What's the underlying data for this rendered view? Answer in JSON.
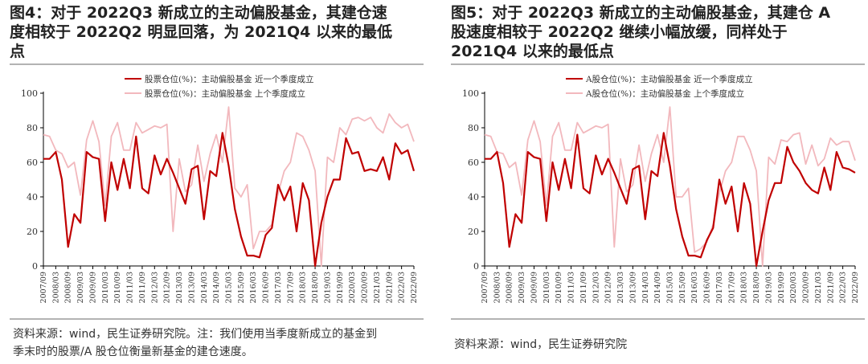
{
  "colors": {
    "recent": "#c00000",
    "prior": "#f2b8bd",
    "axis": "#000000"
  },
  "chart_data": [
    {
      "type": "line",
      "title": "图4：对于 2022Q3 新成立的主动偏股基金，其建仓速\n度相较于 2022Q2 明显回落，为 2021Q4 以来的最低\n点",
      "source": "资料来源：wind，民生证券研究院。注：我们使用当季度新成立的基金到\n季末时的股票/A 股仓位衡量新基金的建仓速度。",
      "xlabel": "",
      "ylabel": "",
      "ylim": [
        0,
        100
      ],
      "yticks": [
        0,
        20,
        40,
        60,
        80,
        100
      ],
      "legend_position": "top",
      "categories": [
        "2007/09",
        "2007/12",
        "2008/03",
        "2008/06",
        "2008/09",
        "2008/12",
        "2009/03",
        "2009/06",
        "2009/09",
        "2009/12",
        "2010/03",
        "2010/06",
        "2010/09",
        "2010/12",
        "2011/03",
        "2011/06",
        "2011/09",
        "2011/12",
        "2012/03",
        "2012/06",
        "2012/09",
        "2012/12",
        "2013/03",
        "2013/06",
        "2013/09",
        "2013/12",
        "2014/03",
        "2014/06",
        "2014/09",
        "2014/12",
        "2015/03",
        "2015/06",
        "2015/09",
        "2015/12",
        "2016/03",
        "2016/06",
        "2016/09",
        "2016/12",
        "2017/03",
        "2017/06",
        "2017/09",
        "2017/12",
        "2018/03",
        "2018/06",
        "2018/09",
        "2018/12",
        "2019/03",
        "2019/06",
        "2019/09",
        "2019/12",
        "2020/03",
        "2020/06",
        "2020/09",
        "2020/12",
        "2021/03",
        "2021/06",
        "2021/09",
        "2021/12",
        "2022/03",
        "2022/06",
        "2022/09"
      ],
      "tick_labels": [
        "2007/09",
        "2008/03",
        "2008/09",
        "2009/03",
        "2009/09",
        "2010/03",
        "2010/09",
        "2011/03",
        "2011/09",
        "2012/03",
        "2012/09",
        "2013/03",
        "2013/09",
        "2014/03",
        "2014/09",
        "2015/03",
        "2015/09",
        "2016/03",
        "2016/09",
        "2017/03",
        "2017/09",
        "2018/03",
        "2018/09",
        "2019/03",
        "2019/09",
        "2020/03",
        "2020/09",
        "2021/03",
        "2021/09",
        "2022/03",
        "2022/09"
      ],
      "series": [
        {
          "name": "股票仓位(%)：主动偏股基金 近一个季度成立",
          "role": "recent",
          "values": [
            62,
            62,
            66,
            50,
            11,
            30,
            25,
            66,
            63,
            62,
            26,
            60,
            44,
            62,
            45,
            75,
            45,
            42,
            64,
            53,
            62,
            54,
            45,
            36,
            56,
            58,
            27,
            55,
            52,
            77,
            58,
            33,
            17,
            6,
            6,
            5,
            18,
            22,
            47,
            38,
            46,
            20,
            48,
            38,
            0,
            25,
            40,
            50,
            50,
            74,
            65,
            66,
            55,
            56,
            55,
            63,
            50,
            71,
            65,
            67,
            55
          ]
        },
        {
          "name": "股票仓位(%)：主动偏股基金 上个季度成立",
          "role": "prior",
          "values": [
            76,
            75,
            67,
            65,
            57,
            60,
            41,
            73,
            84,
            72,
            35,
            75,
            83,
            67,
            67,
            83,
            77,
            79,
            81,
            80,
            82,
            20,
            62,
            43,
            47,
            70,
            49,
            65,
            76,
            60,
            92,
            45,
            40,
            47,
            10,
            20,
            20,
            24,
            42,
            55,
            60,
            77,
            75,
            67,
            55,
            0,
            63,
            60,
            80,
            76,
            85,
            86,
            84,
            86,
            80,
            77,
            88,
            83,
            80,
            82,
            72
          ]
        }
      ]
    },
    {
      "type": "line",
      "title": "图5：对于 2022Q3 新成立的主动偏股基金，其建仓 A\n股速度相较于  2022Q2  继续小幅放缓，同样处于\n2021Q4 以来的最低点",
      "source": "资料来源：wind，民生证券研究院",
      "xlabel": "",
      "ylabel": "",
      "ylim": [
        0,
        100
      ],
      "yticks": [
        0,
        20,
        40,
        60,
        80,
        100
      ],
      "legend_position": "top",
      "categories": [
        "2007/09",
        "2007/12",
        "2008/03",
        "2008/06",
        "2008/09",
        "2008/12",
        "2009/03",
        "2009/06",
        "2009/09",
        "2009/12",
        "2010/03",
        "2010/06",
        "2010/09",
        "2010/12",
        "2011/03",
        "2011/06",
        "2011/09",
        "2011/12",
        "2012/03",
        "2012/06",
        "2012/09",
        "2012/12",
        "2013/03",
        "2013/06",
        "2013/09",
        "2013/12",
        "2014/03",
        "2014/06",
        "2014/09",
        "2014/12",
        "2015/03",
        "2015/06",
        "2015/09",
        "2015/12",
        "2016/03",
        "2016/06",
        "2016/09",
        "2016/12",
        "2017/03",
        "2017/06",
        "2017/09",
        "2017/12",
        "2018/03",
        "2018/06",
        "2018/09",
        "2018/12",
        "2019/03",
        "2019/06",
        "2019/09",
        "2019/12",
        "2020/03",
        "2020/06",
        "2020/09",
        "2020/12",
        "2021/03",
        "2021/06",
        "2021/09",
        "2021/12",
        "2022/03",
        "2022/06",
        "2022/09"
      ],
      "tick_labels": [
        "2007/09",
        "2008/03",
        "2008/09",
        "2009/03",
        "2009/09",
        "2010/03",
        "2010/09",
        "2011/03",
        "2011/09",
        "2012/03",
        "2012/09",
        "2013/03",
        "2013/09",
        "2014/03",
        "2014/09",
        "2015/03",
        "2015/09",
        "2016/03",
        "2016/09",
        "2017/03",
        "2017/09",
        "2018/03",
        "2018/09",
        "2019/03",
        "2019/09",
        "2020/03",
        "2020/09",
        "2021/03",
        "2021/09",
        "2022/03",
        "2022/09"
      ],
      "series": [
        {
          "name": "A股仓位(%)：主动偏股基金 近一个季度成立",
          "role": "recent",
          "values": [
            62,
            62,
            66,
            48,
            11,
            30,
            25,
            66,
            63,
            62,
            26,
            60,
            44,
            62,
            45,
            76,
            45,
            42,
            64,
            53,
            62,
            54,
            45,
            36,
            56,
            58,
            27,
            55,
            52,
            77,
            58,
            33,
            17,
            6,
            6,
            5,
            15,
            22,
            50,
            36,
            46,
            20,
            48,
            36,
            0,
            20,
            38,
            48,
            48,
            69,
            60,
            55,
            48,
            44,
            42,
            57,
            44,
            66,
            57,
            56,
            54
          ]
        },
        {
          "name": "A股仓位(%)：主动偏股基金 上个季度成立",
          "role": "prior",
          "values": [
            76,
            75,
            66,
            65,
            57,
            60,
            41,
            73,
            84,
            72,
            35,
            75,
            83,
            67,
            67,
            83,
            77,
            79,
            81,
            80,
            82,
            11,
            62,
            43,
            47,
            70,
            49,
            65,
            76,
            60,
            92,
            40,
            40,
            45,
            8,
            10,
            14,
            24,
            42,
            55,
            60,
            75,
            75,
            67,
            55,
            0,
            63,
            59,
            73,
            72,
            76,
            77,
            59,
            70,
            58,
            62,
            74,
            70,
            72,
            72,
            61
          ]
        }
      ]
    }
  ]
}
